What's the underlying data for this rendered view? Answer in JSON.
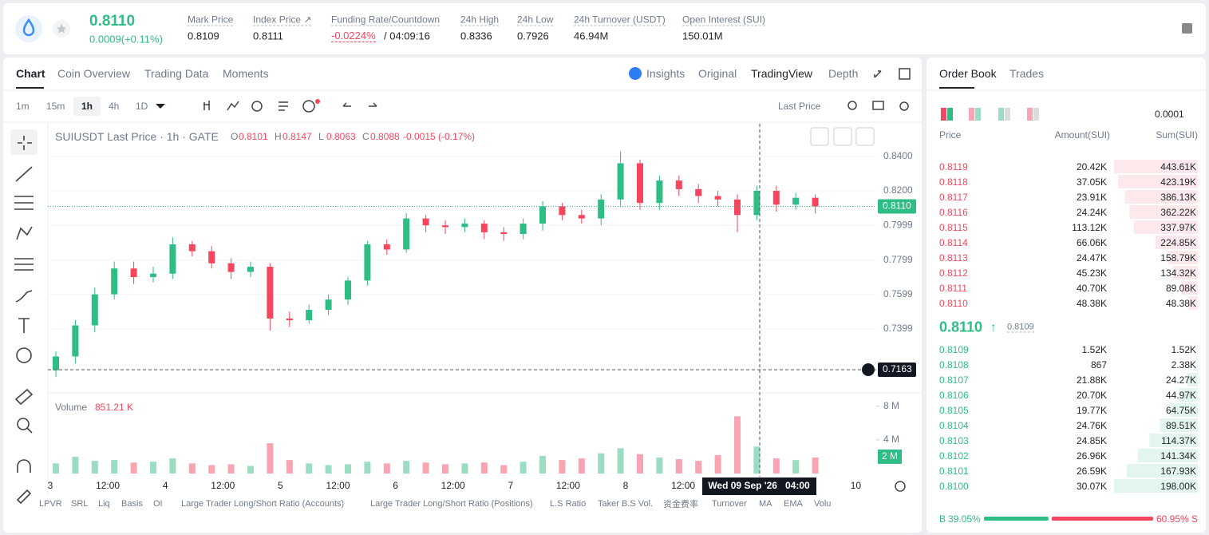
{
  "header": {
    "symbol_price": "0.8110",
    "change": "0.0009(+0.11%)",
    "stats": [
      {
        "label": "Mark Price",
        "value": "0.8109"
      },
      {
        "label": "Index Price ↗",
        "value": "0.8111"
      },
      {
        "label": "Funding Rate/Countdown",
        "value": "-0.0224%",
        "extra": "/ 04:09:16"
      },
      {
        "label": "24h High",
        "value": "0.8336"
      },
      {
        "label": "24h Low",
        "value": "0.7926"
      },
      {
        "label": "24h Turnover (USDT)",
        "value": "46.94M"
      },
      {
        "label": "Open Interest (SUI)",
        "value": "150.01M"
      }
    ]
  },
  "tabs": [
    "Chart",
    "Coin Overview",
    "Trading Data",
    "Moments"
  ],
  "views": [
    "Insights",
    "Original",
    "TradingView",
    "Depth"
  ],
  "intervals": [
    "1m",
    "15m",
    "1h",
    "4h",
    "1D"
  ],
  "price_type": "Last Price",
  "legend": {
    "title": "SUIUSDT Last Price · 1h · GATE",
    "o_label": "O",
    "o": "0.8101",
    "h_label": "H",
    "h": "0.8147",
    "l_label": "L",
    "l": "0.8063",
    "c_label": "C",
    "c": "0.8088",
    "change": "-0.0015 (-0.17%)"
  },
  "volume_legend": {
    "label": "Volume",
    "value": "851.21 K"
  },
  "chart": {
    "type": "candlestick",
    "open": [
      0.716,
      0.724,
      0.742,
      0.76,
      0.775,
      0.77,
      0.772,
      0.789,
      0.785,
      0.778,
      0.773,
      0.776,
      0.746,
      0.745,
      0.751,
      0.757,
      0.768,
      0.789,
      0.786,
      0.804,
      0.8,
      0.799,
      0.801,
      0.796,
      0.795,
      0.801,
      0.811,
      0.806,
      0.804,
      0.815,
      0.836,
      0.813,
      0.826,
      0.821,
      0.817,
      0.815,
      0.806,
      0.82,
      0.812,
      0.816
    ],
    "high": [
      0.727,
      0.745,
      0.764,
      0.779,
      0.779,
      0.776,
      0.793,
      0.791,
      0.788,
      0.781,
      0.779,
      0.778,
      0.75,
      0.754,
      0.76,
      0.77,
      0.791,
      0.792,
      0.807,
      0.806,
      0.803,
      0.804,
      0.803,
      0.799,
      0.804,
      0.814,
      0.813,
      0.809,
      0.818,
      0.843,
      0.838,
      0.829,
      0.829,
      0.824,
      0.82,
      0.818,
      0.823,
      0.823,
      0.819,
      0.818
    ],
    "low": [
      0.712,
      0.72,
      0.738,
      0.757,
      0.766,
      0.767,
      0.769,
      0.782,
      0.775,
      0.769,
      0.77,
      0.739,
      0.741,
      0.743,
      0.748,
      0.754,
      0.765,
      0.783,
      0.784,
      0.796,
      0.795,
      0.796,
      0.792,
      0.791,
      0.792,
      0.797,
      0.803,
      0.801,
      0.8,
      0.811,
      0.809,
      0.809,
      0.817,
      0.813,
      0.811,
      0.796,
      0.803,
      0.808,
      0.809,
      0.807
    ],
    "close": [
      0.724,
      0.742,
      0.76,
      0.775,
      0.77,
      0.772,
      0.789,
      0.785,
      0.778,
      0.773,
      0.776,
      0.746,
      0.745,
      0.751,
      0.757,
      0.768,
      0.789,
      0.786,
      0.804,
      0.8,
      0.799,
      0.801,
      0.796,
      0.795,
      0.801,
      0.811,
      0.806,
      0.804,
      0.815,
      0.836,
      0.813,
      0.826,
      0.821,
      0.817,
      0.815,
      0.806,
      0.82,
      0.812,
      0.816,
      0.811
    ],
    "volume": [
      1.2,
      2.0,
      1.5,
      1.6,
      1.3,
      1.4,
      1.8,
      1.2,
      1.0,
      1.1,
      0.9,
      3.6,
      1.6,
      1.2,
      1.0,
      1.1,
      1.4,
      1.2,
      1.5,
      1.3,
      1.1,
      1.2,
      1.3,
      1.0,
      1.4,
      2.1,
      1.6,
      1.8,
      2.4,
      3.0,
      2.3,
      1.9,
      1.7,
      1.5,
      2.2,
      6.8,
      3.2,
      1.8,
      1.6,
      1.9
    ],
    "ylim": [
      0.7038,
      0.8589
    ],
    "yticks": [
      0.7399,
      0.7599,
      0.7799,
      0.7999,
      {
        "value": 0.82,
        "label": "0.8200"
      },
      {
        "value": 0.84,
        "label": "0.8400"
      }
    ],
    "volume_lim": [
      0,
      9.3
    ],
    "volume_ticks": [
      {
        "value": 4,
        "label": "4 M"
      },
      {
        "value": 8,
        "label": "8 M"
      }
    ],
    "volume_marker": {
      "value": 2,
      "label": "2 M"
    },
    "x_labels": [
      "3",
      "12:00",
      "4",
      "12:00",
      "5",
      "12:00",
      "6",
      "12:00",
      "7",
      "12:00",
      "8",
      "12:00",
      null,
      null,
      "10"
    ],
    "last_price": {
      "value": 0.811,
      "label": "0.8110"
    },
    "crosshair_price": 0.7163,
    "crosshair_time": "Wed 09 Sep '26   04:00"
  },
  "indicators": [
    "LPVR",
    "SRL",
    "Liq",
    "Basis",
    "OI",
    "Large Trader Long/Short Ratio (Accounts)",
    "Large Trader Long/Short Ratio (Positions)",
    "L.S Ratio",
    "Taker B.S Vol.",
    "资金费率",
    "Turnover",
    "MA",
    "EMA",
    "Volu"
  ],
  "order_book": {
    "tabs": [
      "Order Book",
      "Trades"
    ],
    "precision": "0.0001",
    "columns": [
      "Price",
      "Amount(SUI)",
      "Sum(SUI)"
    ],
    "asks": [
      {
        "price": "0.8119",
        "amount": "20.42K",
        "sum": {
          "value": 443610,
          "label": "443.61K"
        }
      },
      {
        "price": "0.8118",
        "amount": "37.05K",
        "sum": {
          "value": 423190,
          "label": "423.19K"
        }
      },
      {
        "price": "0.8117",
        "amount": "23.91K",
        "sum": {
          "value": 386130,
          "label": "386.13K"
        }
      },
      {
        "price": "0.8116",
        "amount": "24.24K",
        "sum": {
          "value": 362220,
          "label": "362.22K"
        }
      },
      {
        "price": "0.8115",
        "amount": "113.12K",
        "sum": {
          "value": 337970,
          "label": "337.97K"
        }
      },
      {
        "price": "0.8114",
        "amount": "66.06K",
        "sum": {
          "value": 224850,
          "label": "224.85K"
        }
      },
      {
        "price": "0.8113",
        "amount": "24.47K",
        "sum": {
          "value": 158790,
          "label": "158.79K"
        }
      },
      {
        "price": "0.8112",
        "amount": "45.23K",
        "sum": {
          "value": 134320,
          "label": "134.32K"
        }
      },
      {
        "price": "0.8111",
        "amount": "40.70K",
        "sum": {
          "value": 89080,
          "label": "89.08K"
        }
      },
      {
        "price": "0.8110",
        "amount": "48.38K",
        "sum": {
          "value": 48380,
          "label": "48.38K"
        }
      }
    ],
    "last": "0.8110",
    "arrow": "↑",
    "mark": "0.8109",
    "bids": [
      {
        "price": "0.8109",
        "amount": "1.52K",
        "sum": {
          "value": 1520,
          "label": "1.52K"
        }
      },
      {
        "price": "0.8108",
        "amount": "867",
        "sum": {
          "value": 2380,
          "label": "2.38K"
        }
      },
      {
        "price": "0.8107",
        "amount": "21.88K",
        "sum": {
          "value": 24270,
          "label": "24.27K"
        }
      },
      {
        "price": "0.8106",
        "amount": "20.70K",
        "sum": {
          "value": 44970,
          "label": "44.97K"
        }
      },
      {
        "price": "0.8105",
        "amount": "19.77K",
        "sum": {
          "value": 64750,
          "label": "64.75K"
        }
      },
      {
        "price": "0.8104",
        "amount": "24.76K",
        "sum": {
          "value": 89510,
          "label": "89.51K"
        }
      },
      {
        "price": "0.8103",
        "amount": "24.85K",
        "sum": {
          "value": 114370,
          "label": "114.37K"
        }
      },
      {
        "price": "0.8102",
        "amount": "26.96K",
        "sum": {
          "value": 141340,
          "label": "141.34K"
        }
      },
      {
        "price": "0.8101",
        "amount": "26.59K",
        "sum": {
          "value": 167930,
          "label": "167.93K"
        }
      },
      {
        "price": "0.8100",
        "amount": "30.07K",
        "sum": {
          "value": 198000,
          "label": "198.00K"
        }
      }
    ],
    "buy_label": "B",
    "buy": {
      "value": 39.05,
      "label": "39.05%"
    },
    "sell": {
      "value": 60.95,
      "label": "60.95%"
    },
    "sell_label": "S"
  }
}
